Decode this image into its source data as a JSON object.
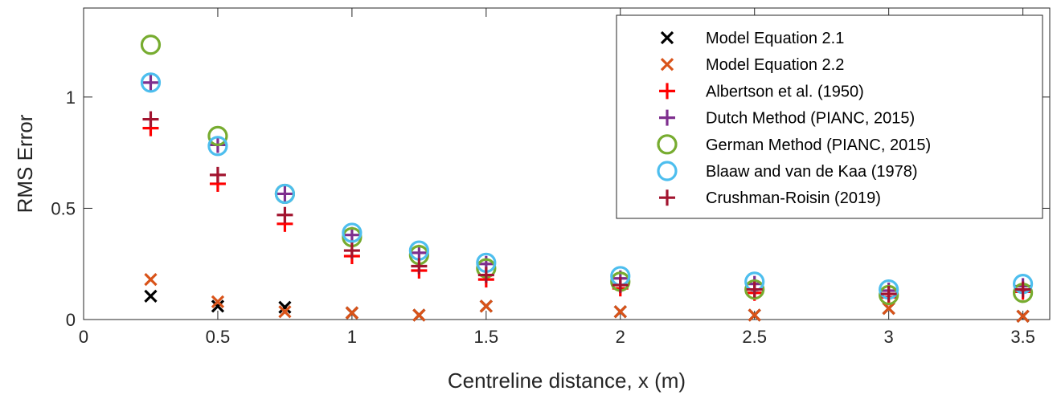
{
  "chart_data": {
    "type": "scatter",
    "xlabel": "Centreline distance, x (m)",
    "ylabel": "RMS Error",
    "xlim": [
      0,
      3.6
    ],
    "ylim": [
      0,
      1.4
    ],
    "xticks": [
      0,
      0.5,
      1,
      1.5,
      2,
      2.5,
      3,
      3.5
    ],
    "xtick_labels": [
      "0",
      "0.5",
      "1",
      "1.5",
      "2",
      "2.5",
      "3",
      "3.5"
    ],
    "yticks": [
      0,
      0.5,
      1
    ],
    "ytick_labels": [
      "0",
      "0.5",
      "1"
    ],
    "grid": false,
    "legend_position": "top-right",
    "x": [
      0.25,
      0.5,
      0.75,
      1,
      1.25,
      1.5,
      2,
      2.5,
      3,
      3.5
    ],
    "series": [
      {
        "name": "Model Equation 2.1",
        "marker": "x",
        "color": "#000000",
        "values": [
          0.105,
          0.06,
          0.055,
          0.03,
          0.02,
          0.06,
          0.035,
          0.02,
          0.05,
          0.015
        ]
      },
      {
        "name": "Model Equation 2.2",
        "marker": "x",
        "color": "#D95319",
        "values": [
          0.18,
          0.08,
          0.035,
          0.03,
          0.02,
          0.06,
          0.035,
          0.02,
          0.05,
          0.015
        ]
      },
      {
        "name": "Albertson et al. (1950)",
        "marker": "plus",
        "color": "#FF0000",
        "values": [
          0.86,
          0.61,
          0.43,
          0.285,
          0.22,
          0.18,
          0.14,
          0.12,
          0.1,
          0.125
        ]
      },
      {
        "name": "Dutch Method (PIANC, 2015)",
        "marker": "plus",
        "color": "#7E2F8E",
        "values": [
          1.065,
          0.785,
          0.565,
          0.38,
          0.3,
          0.25,
          0.185,
          0.16,
          0.13,
          0.15
        ]
      },
      {
        "name": "German Method (PIANC, 2015)",
        "marker": "circle",
        "color": "#77AC30",
        "values": [
          1.235,
          0.825,
          0.565,
          0.37,
          0.29,
          0.23,
          0.17,
          0.135,
          0.11,
          0.12
        ]
      },
      {
        "name": "Blaaw and van de Kaa (1978)",
        "marker": "circle",
        "color": "#4DBEEE",
        "values": [
          1.065,
          0.78,
          0.565,
          0.39,
          0.31,
          0.255,
          0.195,
          0.17,
          0.135,
          0.16
        ]
      },
      {
        "name": "Crushman-Roisin (2019)",
        "marker": "plus",
        "color": "#A2142F",
        "values": [
          0.9,
          0.65,
          0.47,
          0.31,
          0.24,
          0.2,
          0.155,
          0.135,
          0.115,
          0.135
        ]
      }
    ]
  }
}
